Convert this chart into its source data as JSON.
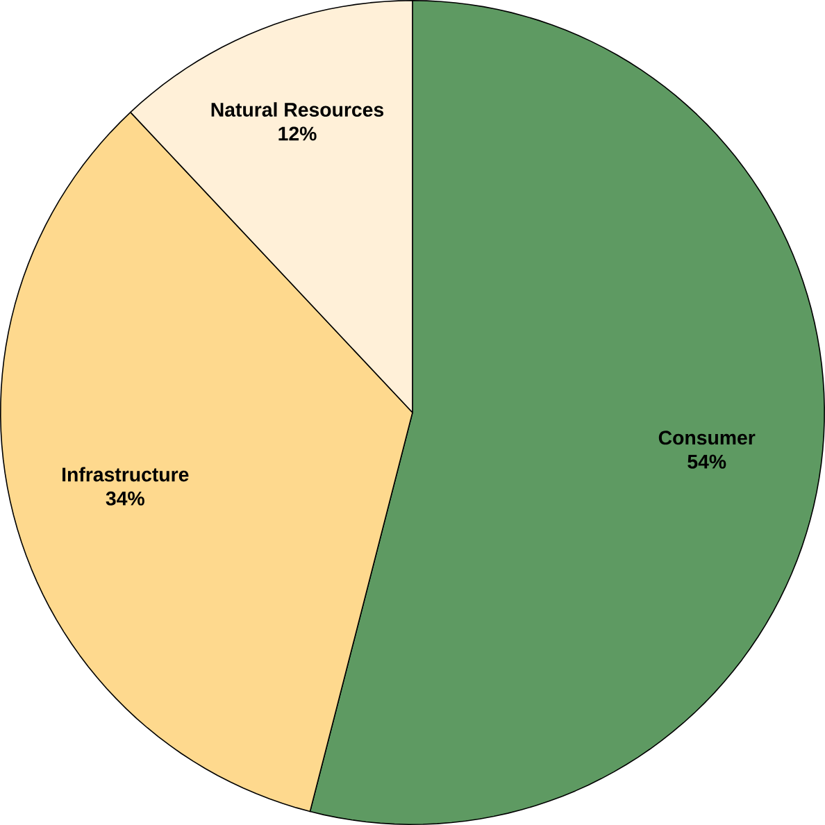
{
  "chart_data": {
    "type": "pie",
    "categories": [
      "Consumer",
      "Infrastructure",
      "Natural Resources"
    ],
    "values": [
      54,
      34,
      12
    ],
    "colors": [
      "#5e9a62",
      "#fed98e",
      "#fff0d8"
    ],
    "value_labels": [
      "54%",
      "34%",
      "12%"
    ]
  }
}
